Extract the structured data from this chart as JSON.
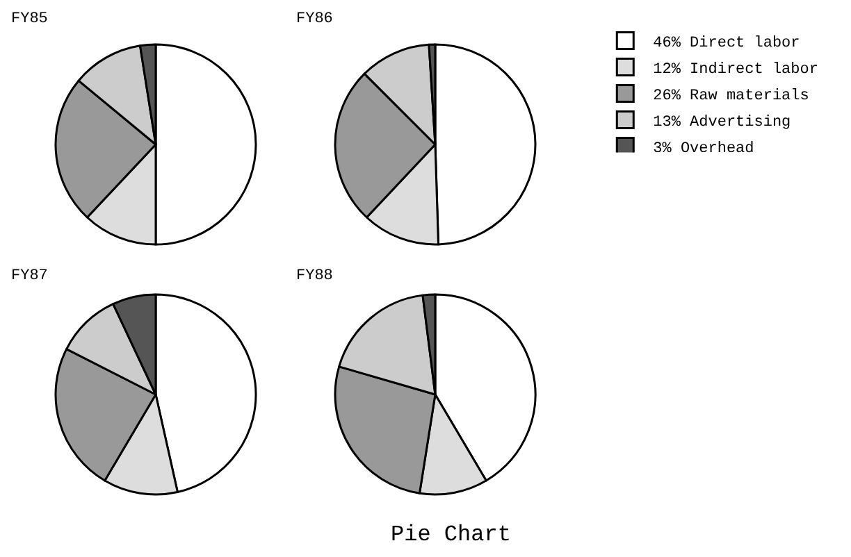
{
  "chart_data": [
    {
      "type": "pie",
      "title": "FY85",
      "categories": [
        null,
        null,
        null,
        null,
        null
      ],
      "values": [
        50,
        12,
        24,
        11.5,
        2.5
      ],
      "colors": [
        "#ffffff",
        "#dddddd",
        "#999999",
        "#cccccc",
        "#555555"
      ]
    },
    {
      "type": "pie",
      "title": "FY86",
      "categories": [
        "46% Direct labor",
        "12% Indirect labor",
        "26% Raw materials",
        "13% Advertising",
        "3% Overhead"
      ],
      "values": [
        49.5,
        12.5,
        25.5,
        11.5,
        1
      ],
      "colors": [
        "#ffffff",
        "#dddddd",
        "#999999",
        "#cccccc",
        "#555555"
      ],
      "legend": "top right"
    },
    {
      "type": "pie",
      "title": "FY87",
      "categories": [
        null,
        null,
        null,
        null,
        null
      ],
      "values": [
        46.5,
        12,
        24,
        10.5,
        7
      ],
      "colors": [
        "#ffffff",
        "#dddddd",
        "#999999",
        "#cccccc",
        "#555555"
      ]
    },
    {
      "type": "pie",
      "title": "FY88",
      "categories": [
        null,
        null,
        null,
        null,
        null
      ],
      "values": [
        41.5,
        11,
        27,
        18.5,
        2
      ],
      "colors": [
        "#ffffff",
        "#dddddd",
        "#999999",
        "#cccccc",
        "#555555"
      ],
      "annotations": [
        "Pie Chart"
      ]
    }
  ]
}
